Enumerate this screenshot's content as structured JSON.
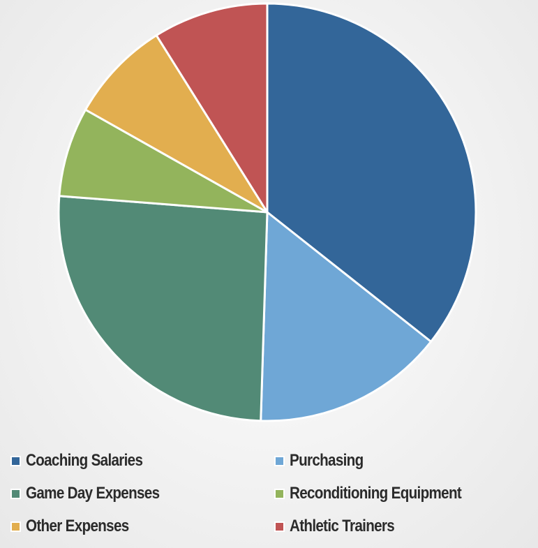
{
  "chart_data": {
    "type": "pie",
    "title": "",
    "categories": [
      "Coaching Salaries",
      "Purchasing",
      "Game Day Expenses",
      "Reconditioning Equipment",
      "Other Expenses",
      "Athletic Trainers"
    ],
    "values": [
      36,
      15,
      26,
      7,
      8,
      9
    ],
    "unit": "%",
    "colors": [
      "#336699",
      "#6fa7d6",
      "#528a76",
      "#93b45c",
      "#e2ae4f",
      "#c05454"
    ],
    "start_angle_deg": 0,
    "direction": "clockwise",
    "slice_border_color": "#ffffff",
    "legend_placement": "bottom",
    "legend_columns": 2
  }
}
